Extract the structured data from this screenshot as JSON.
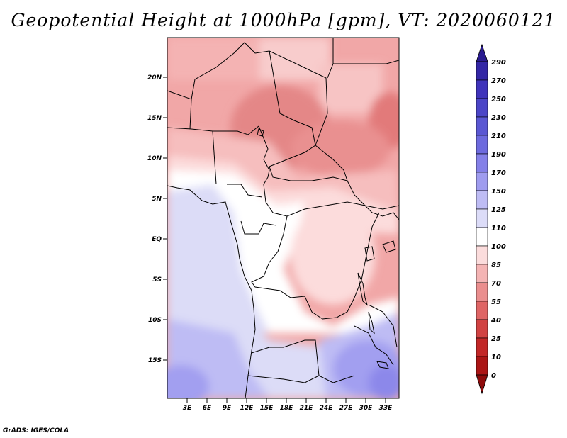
{
  "title": "Geopotential Height at 1000hPa [gpm], VT: 2020060121",
  "credit": "GrADS: IGES/COLA",
  "map": {
    "lat_labels": [
      "20N",
      "15N",
      "10N",
      "5N",
      "EQ",
      "5S",
      "10S",
      "15S"
    ],
    "lon_labels": [
      "3E",
      "6E",
      "9E",
      "12E",
      "15E",
      "18E",
      "21E",
      "24E",
      "27E",
      "30E",
      "33E"
    ]
  },
  "colorbar": {
    "labels": [
      "290",
      "270",
      "250",
      "230",
      "210",
      "190",
      "170",
      "150",
      "125",
      "110",
      "100",
      "85",
      "70",
      "55",
      "40",
      "25",
      "10",
      "0"
    ],
    "colors": [
      "#2a1b8f",
      "#3326a6",
      "#3f33bb",
      "#4b45c7",
      "#5a57d3",
      "#6d6ade",
      "#8480e8",
      "#9f9cef",
      "#bebcf4",
      "#dcdcf8",
      "#ffffff",
      "#fbdcdc",
      "#f4b4b4",
      "#ea8e8e",
      "#df6565",
      "#d14242",
      "#c22727",
      "#ab1515",
      "#8e0b0b"
    ]
  }
}
